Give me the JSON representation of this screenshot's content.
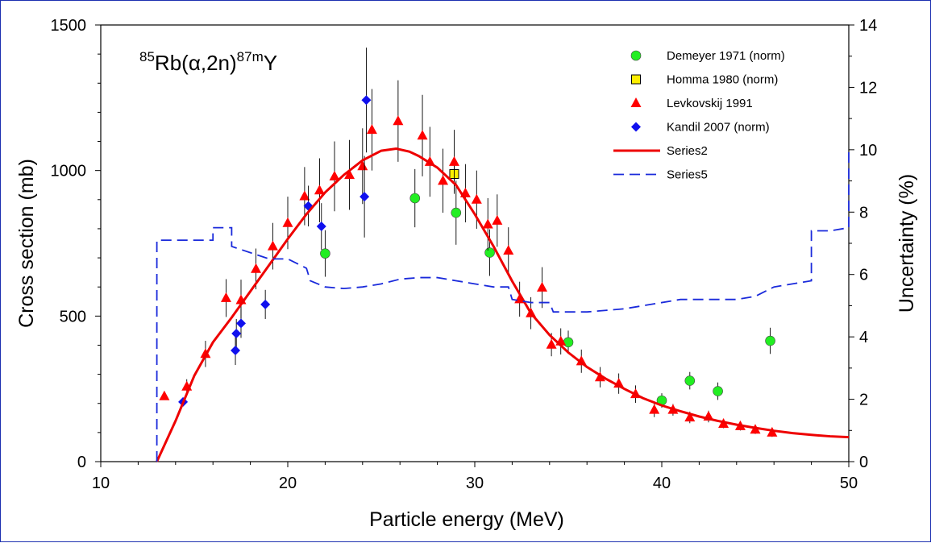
{
  "chart_data": {
    "type": "scatter",
    "title": {
      "pre": "85",
      "a": "Rb(",
      "greek": "α",
      "b": ",2n)",
      "post": "87m",
      "c": "Y"
    },
    "xlabel": "Particle energy (MeV)",
    "ylabel": "Cross section (mb)",
    "y2label": "Uncertainty (%)",
    "xlim": [
      10,
      50
    ],
    "ylim": [
      0,
      1500
    ],
    "y2lim": [
      0,
      14
    ],
    "xticks": [
      "10",
      "20",
      "30",
      "40",
      "50"
    ],
    "yticks": [
      "0",
      "500",
      "1000",
      "1500"
    ],
    "y2ticks": [
      "0",
      "2",
      "4",
      "6",
      "8",
      "10",
      "12",
      "14"
    ],
    "series": [
      {
        "name": "Demeyer 1971 (norm)",
        "marker": "circle",
        "color": "#22ee22",
        "points": [
          [
            22.0,
            715,
            80
          ],
          [
            26.8,
            905,
            100
          ],
          [
            29.0,
            855,
            110
          ],
          [
            30.8,
            718,
            80
          ],
          [
            35.0,
            410,
            40
          ],
          [
            40.0,
            210,
            25
          ],
          [
            41.5,
            278,
            30
          ],
          [
            43.0,
            242,
            30
          ],
          [
            45.8,
            415,
            45
          ]
        ]
      },
      {
        "name": "Homma 1980 (norm)",
        "marker": "square",
        "color": "#ffee00",
        "points": [
          [
            28.9,
            988,
            60
          ]
        ]
      },
      {
        "name": "Levkovskij 1991",
        "marker": "triangle",
        "color": "#ff0000",
        "points": [
          [
            13.4,
            225,
            0
          ],
          [
            14.6,
            258,
            25
          ],
          [
            15.6,
            370,
            45
          ],
          [
            16.7,
            562,
            65
          ],
          [
            17.5,
            555,
            70
          ],
          [
            18.3,
            662,
            70
          ],
          [
            19.2,
            740,
            80
          ],
          [
            20.0,
            820,
            90
          ],
          [
            20.9,
            912,
            100
          ],
          [
            21.7,
            932,
            110
          ],
          [
            22.5,
            980,
            120
          ],
          [
            23.3,
            985,
            120
          ],
          [
            24.0,
            1015,
            130
          ],
          [
            24.5,
            1140,
            140
          ],
          [
            25.9,
            1170,
            140
          ],
          [
            27.2,
            1120,
            140
          ],
          [
            27.6,
            1030,
            120
          ],
          [
            28.3,
            965,
            110
          ],
          [
            28.9,
            1030,
            110
          ],
          [
            29.5,
            922,
            100
          ],
          [
            30.1,
            900,
            100
          ],
          [
            30.7,
            815,
            90
          ],
          [
            31.2,
            828,
            90
          ],
          [
            31.8,
            725,
            80
          ],
          [
            32.4,
            558,
            60
          ],
          [
            33.0,
            510,
            55
          ],
          [
            33.6,
            598,
            70
          ],
          [
            34.1,
            402,
            40
          ],
          [
            34.6,
            413,
            45
          ],
          [
            35.7,
            345,
            40
          ],
          [
            36.7,
            290,
            35
          ],
          [
            37.7,
            268,
            35
          ],
          [
            38.6,
            232,
            30
          ],
          [
            39.6,
            178,
            25
          ],
          [
            40.6,
            178,
            20
          ],
          [
            41.5,
            152,
            20
          ],
          [
            42.5,
            155,
            20
          ],
          [
            43.3,
            130,
            15
          ],
          [
            44.2,
            122,
            15
          ],
          [
            45.0,
            110,
            15
          ],
          [
            45.9,
            100,
            15
          ]
        ]
      },
      {
        "name": "Kandil 2007 (norm)",
        "marker": "diamond",
        "color": "#1010ee",
        "points": [
          [
            14.4,
            205,
            0
          ],
          [
            17.2,
            382,
            50
          ],
          [
            17.25,
            440,
            50
          ],
          [
            17.5,
            475,
            50
          ],
          [
            18.8,
            540,
            50
          ],
          [
            21.1,
            878,
            70
          ],
          [
            21.8,
            808,
            80
          ],
          [
            24.1,
            910,
            140
          ],
          [
            24.2,
            1242,
            180
          ]
        ]
      },
      {
        "name": "Series2",
        "style": "line",
        "color": "#ee0000",
        "x": [
          13.0,
          14.0,
          15.0,
          16.0,
          17.0,
          18.0,
          19.0,
          20.0,
          21.0,
          22.0,
          23.0,
          24.0,
          25.0,
          25.8,
          26.5,
          27.0,
          28.0,
          29.0,
          30.0,
          31.0,
          32.0,
          33.0,
          34.0,
          35.0,
          36.0,
          37.0,
          38.0,
          39.0,
          40.0,
          41.0,
          42.0,
          43.0,
          44.0,
          45.0,
          46.0,
          47.0,
          48.0,
          49.0,
          50.0
        ],
        "y": [
          0,
          140,
          295,
          410,
          495,
          585,
          675,
          765,
          850,
          925,
          985,
          1035,
          1068,
          1075,
          1065,
          1050,
          1010,
          950,
          850,
          740,
          620,
          510,
          435,
          375,
          325,
          285,
          250,
          218,
          193,
          173,
          155,
          140,
          127,
          116,
          106,
          98,
          92,
          87,
          84
        ]
      },
      {
        "name": "Series5",
        "style": "dashed-step",
        "color": "#1a2adb",
        "axis": "y2",
        "x": [
          13.0,
          13.0,
          16.0,
          16.0,
          17.0,
          17.0,
          18.0,
          19.0,
          19.2,
          20.0,
          21.0,
          21.2,
          22.0,
          23.0,
          24.0,
          25.0,
          26.0,
          27.0,
          28.0,
          29.0,
          30.0,
          31.0,
          31.8,
          32.0,
          33.0,
          34.0,
          34.2,
          35.0,
          36.0,
          37.0,
          38.0,
          39.0,
          40.0,
          41.0,
          42.0,
          43.0,
          44.0,
          45.0,
          46.0,
          48.0,
          48.0,
          49.0,
          50.0,
          50.0
        ],
        "y": [
          0,
          7.1,
          7.1,
          7.5,
          7.5,
          6.9,
          6.7,
          6.5,
          6.5,
          6.5,
          6.2,
          5.8,
          5.6,
          5.55,
          5.6,
          5.7,
          5.85,
          5.9,
          5.9,
          5.8,
          5.7,
          5.6,
          5.6,
          5.2,
          5.1,
          5.1,
          4.8,
          4.8,
          4.8,
          4.85,
          4.9,
          5.0,
          5.1,
          5.2,
          5.2,
          5.2,
          5.2,
          5.3,
          5.6,
          5.8,
          7.4,
          7.4,
          7.5,
          10.0
        ]
      }
    ]
  }
}
